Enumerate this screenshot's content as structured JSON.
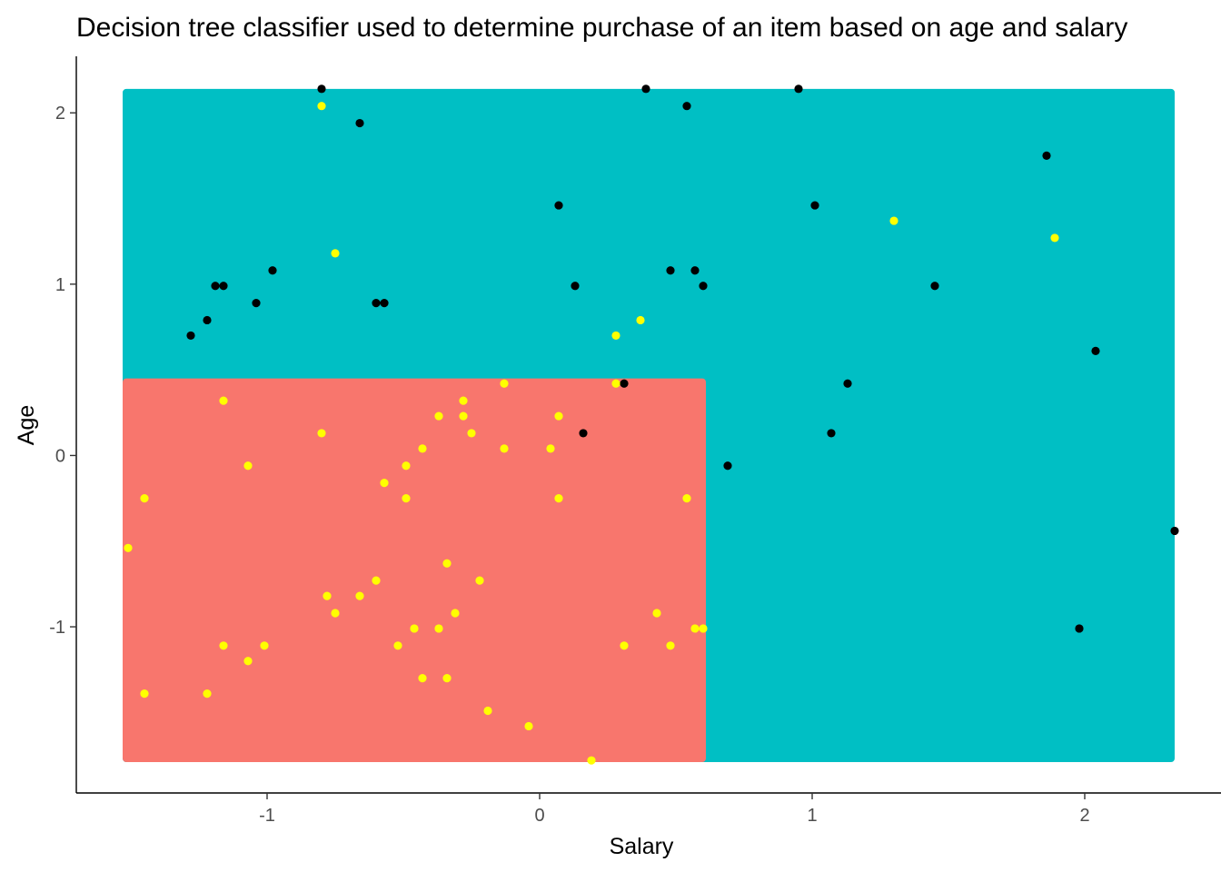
{
  "chart_data": {
    "type": "scatter",
    "title": "Decision tree classifier used to determine purchase of an item based on age and salary",
    "xlabel": "Salary",
    "ylabel": "Age",
    "xlim": [
      -1.7,
      2.5
    ],
    "ylim": [
      -1.97,
      2.33
    ],
    "x_ticks": [
      -1,
      0,
      1,
      2
    ],
    "y_ticks": [
      -1,
      0,
      1,
      2
    ],
    "grid": false,
    "legend": "none",
    "colors": {
      "region_no_purchase": "#F8766D",
      "region_purchase": "#00BFC4",
      "point_black": "#000000",
      "point_yellow": "#FFFF00"
    },
    "regions": [
      {
        "class": "purchase",
        "x": [
          -1.53,
          2.33
        ],
        "y": [
          -1.79,
          2.14
        ]
      },
      {
        "class": "no_purchase",
        "x": [
          -1.53,
          0.61
        ],
        "y": [
          -1.79,
          0.45
        ]
      }
    ],
    "series": [
      {
        "color": "#000000",
        "points": [
          [
            -0.8,
            2.14
          ],
          [
            -0.66,
            1.94
          ],
          [
            0.39,
            2.14
          ],
          [
            0.54,
            2.04
          ],
          [
            0.95,
            2.14
          ],
          [
            1.86,
            1.75
          ],
          [
            0.07,
            1.46
          ],
          [
            1.01,
            1.46
          ],
          [
            -0.98,
            1.08
          ],
          [
            0.48,
            1.08
          ],
          [
            0.57,
            1.08
          ],
          [
            -1.19,
            0.99
          ],
          [
            -1.16,
            0.99
          ],
          [
            0.13,
            0.99
          ],
          [
            0.6,
            0.99
          ],
          [
            1.45,
            0.99
          ],
          [
            -1.04,
            0.89
          ],
          [
            -0.6,
            0.89
          ],
          [
            -0.57,
            0.89
          ],
          [
            -1.22,
            0.79
          ],
          [
            -1.28,
            0.7
          ],
          [
            2.04,
            0.61
          ],
          [
            0.31,
            0.42
          ],
          [
            1.13,
            0.42
          ],
          [
            0.16,
            0.13
          ],
          [
            1.07,
            0.13
          ],
          [
            0.69,
            -0.06
          ],
          [
            2.33,
            -0.44
          ],
          [
            1.98,
            -1.01
          ]
        ]
      },
      {
        "color": "#FFFF00",
        "points": [
          [
            -0.8,
            2.04
          ],
          [
            -0.75,
            1.18
          ],
          [
            1.3,
            1.37
          ],
          [
            1.89,
            1.27
          ],
          [
            0.37,
            0.79
          ],
          [
            0.28,
            0.7
          ],
          [
            0.28,
            0.42
          ],
          [
            -0.13,
            0.42
          ],
          [
            -1.16,
            0.32
          ],
          [
            -0.28,
            0.32
          ],
          [
            -0.37,
            0.23
          ],
          [
            -0.28,
            0.23
          ],
          [
            0.07,
            0.23
          ],
          [
            -0.8,
            0.13
          ],
          [
            -0.25,
            0.13
          ],
          [
            -0.43,
            0.04
          ],
          [
            -0.13,
            0.04
          ],
          [
            0.04,
            0.04
          ],
          [
            -1.07,
            -0.06
          ],
          [
            -0.49,
            -0.06
          ],
          [
            -0.57,
            -0.16
          ],
          [
            -1.45,
            -0.25
          ],
          [
            -0.49,
            -0.25
          ],
          [
            0.07,
            -0.25
          ],
          [
            0.54,
            -0.25
          ],
          [
            -1.51,
            -0.54
          ],
          [
            -0.34,
            -0.63
          ],
          [
            -0.6,
            -0.73
          ],
          [
            -0.22,
            -0.73
          ],
          [
            -0.78,
            -0.82
          ],
          [
            -0.66,
            -0.82
          ],
          [
            -0.75,
            -0.92
          ],
          [
            -0.31,
            -0.92
          ],
          [
            0.43,
            -0.92
          ],
          [
            -0.46,
            -1.01
          ],
          [
            -0.37,
            -1.01
          ],
          [
            0.57,
            -1.01
          ],
          [
            0.6,
            -1.01
          ],
          [
            -1.16,
            -1.11
          ],
          [
            -1.01,
            -1.11
          ],
          [
            -0.52,
            -1.11
          ],
          [
            0.31,
            -1.11
          ],
          [
            0.48,
            -1.11
          ],
          [
            -1.07,
            -1.2
          ],
          [
            -0.43,
            -1.3
          ],
          [
            -0.34,
            -1.3
          ],
          [
            -1.45,
            -1.39
          ],
          [
            -1.22,
            -1.39
          ],
          [
            -0.19,
            -1.49
          ],
          [
            -0.04,
            -1.58
          ],
          [
            0.19,
            -1.78
          ]
        ]
      }
    ]
  }
}
